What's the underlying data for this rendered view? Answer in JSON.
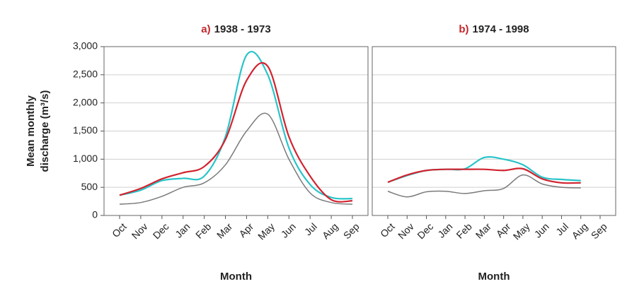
{
  "chart_data": [
    {
      "type": "line",
      "label": "a)",
      "title": "1938 - 1973",
      "ylabel_lines": [
        "Mean monthly",
        "discharge (m³/s)"
      ],
      "xlabel": "Month",
      "categories": [
        "Oct",
        "Nov",
        "Dec",
        "Jan",
        "Feb",
        "Mar",
        "Apr",
        "May",
        "Jun",
        "Jul",
        "Aug",
        "Sep"
      ],
      "ylim": [
        0,
        3000
      ],
      "yticks": [
        0,
        {
          "value": 500,
          "label": "500"
        },
        {
          "value": 1000,
          "label": "1,000"
        },
        {
          "value": 1500,
          "label": "1,500"
        },
        {
          "value": 2000,
          "label": "2,000"
        },
        {
          "value": 2500,
          "label": "2,500"
        },
        {
          "value": 3000,
          "label": "3,000"
        }
      ],
      "show_tick_labels": true,
      "grid": true,
      "series": [
        {
          "color": "#29c4c9",
          "values": [
            360,
            450,
            620,
            660,
            700,
            1400,
            2850,
            2500,
            1200,
            550,
            320,
            300
          ]
        },
        {
          "color": "#d1232f",
          "values": [
            360,
            480,
            650,
            760,
            870,
            1350,
            2400,
            2650,
            1400,
            700,
            280,
            260
          ]
        },
        {
          "color": "#7a7a7a",
          "values": [
            200,
            230,
            340,
            500,
            580,
            900,
            1500,
            1800,
            1000,
            400,
            230,
            200
          ]
        }
      ]
    },
    {
      "type": "line",
      "label": "b)",
      "title": "1974 - 1998",
      "xlabel": "Month",
      "categories": [
        "Oct",
        "Nov",
        "Dec",
        "Jan",
        "Feb",
        "Mar",
        "Apr",
        "May",
        "Jun",
        "Jul",
        "Aug",
        "Sep"
      ],
      "ylim": [
        0,
        3000
      ],
      "yticks": [
        0,
        500,
        1000,
        1500,
        2000,
        2500,
        3000
      ],
      "show_tick_labels": false,
      "grid": true,
      "series": [
        {
          "color": "#29c4c9",
          "values": [
            590,
            710,
            800,
            820,
            830,
            1030,
            1000,
            900,
            680,
            640,
            620,
            null
          ]
        },
        {
          "color": "#d1232f",
          "values": [
            590,
            720,
            800,
            820,
            820,
            820,
            800,
            830,
            650,
            580,
            580,
            null
          ]
        },
        {
          "color": "#7a7a7a",
          "values": [
            430,
            330,
            420,
            430,
            390,
            440,
            480,
            720,
            560,
            500,
            490,
            null
          ]
        }
      ]
    }
  ]
}
